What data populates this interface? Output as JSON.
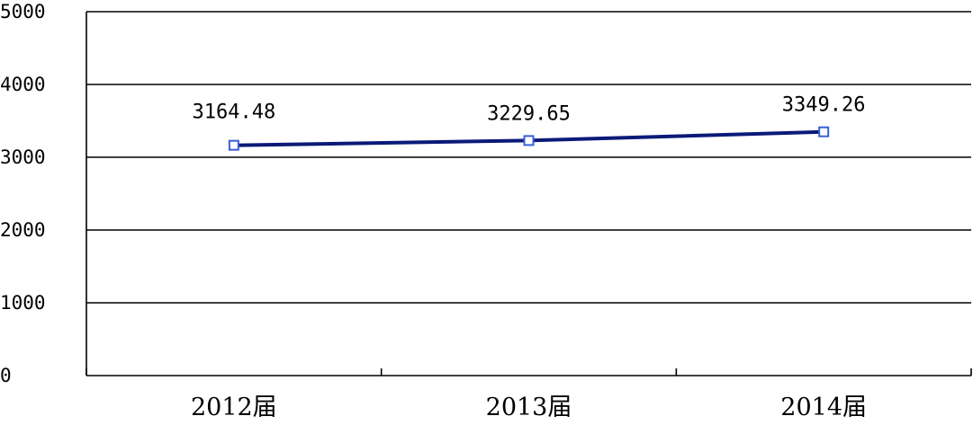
{
  "chart_data": {
    "type": "line",
    "title": "",
    "xlabel": "",
    "ylabel": "",
    "categories": [
      "2012届",
      "2013届",
      "2014届"
    ],
    "series": [
      {
        "values": [
          3164.48,
          3229.65,
          3349.26
        ],
        "data_labels": [
          "3164.48",
          "3229.65",
          "3349.26"
        ],
        "color": "#0a1a78",
        "marker_color": "#3a5fd8"
      }
    ],
    "ylim": [
      0,
      5000
    ],
    "yticks": [
      "0",
      "1000",
      "2000",
      "3000",
      "4000",
      "5000"
    ],
    "grid": true,
    "legend": "none"
  }
}
